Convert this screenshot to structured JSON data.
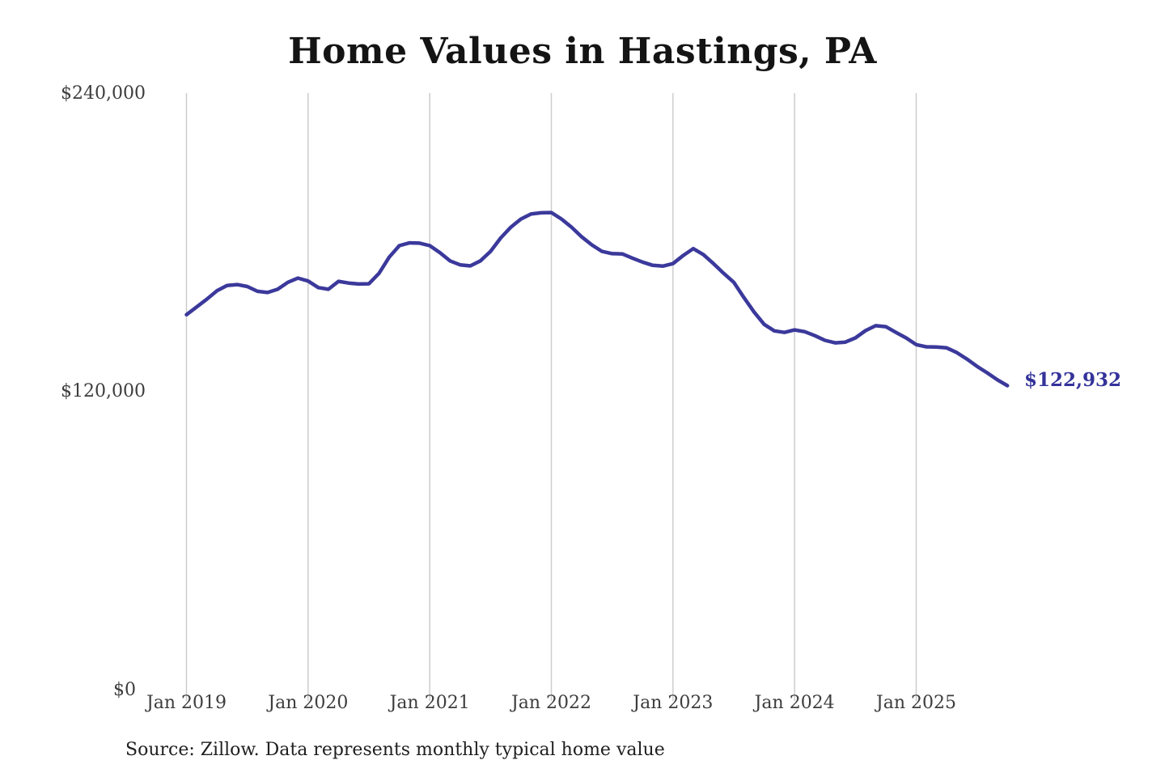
{
  "title": "Home Values in Hastings, PA",
  "source_note": "Source: Zillow. Data represents monthly typical home value",
  "colors": {
    "line": "#3b399b",
    "value_label": "#34339a",
    "grid": "#cccccc",
    "axis_text": "#3d3d3d",
    "title_text": "#141414"
  },
  "chart_data": {
    "type": "line",
    "title": "Home Values in Hastings, PA",
    "grid": "vertical-only",
    "legend": "none",
    "ylim": [
      0,
      240000
    ],
    "y_ticks": [
      {
        "label": "$0",
        "value": 0
      },
      {
        "label": "$120,000",
        "value": 120000
      },
      {
        "label": "$240,000",
        "value": 240000
      }
    ],
    "x_tick_labels": [
      "Jan 2019",
      "Jan 2020",
      "Jan 2021",
      "Jan 2022",
      "Jan 2023",
      "Jan 2024",
      "Jan 2025"
    ],
    "months": [
      "2019-01",
      "2019-02",
      "2019-03",
      "2019-04",
      "2019-05",
      "2019-06",
      "2019-07",
      "2019-08",
      "2019-09",
      "2019-10",
      "2019-11",
      "2019-12",
      "2020-01",
      "2020-02",
      "2020-03",
      "2020-04",
      "2020-05",
      "2020-06",
      "2020-07",
      "2020-08",
      "2020-09",
      "2020-10",
      "2020-11",
      "2020-12",
      "2021-01",
      "2021-02",
      "2021-03",
      "2021-04",
      "2021-05",
      "2021-06",
      "2021-07",
      "2021-08",
      "2021-09",
      "2021-10",
      "2021-11",
      "2021-12",
      "2022-01",
      "2022-02",
      "2022-03",
      "2022-04",
      "2022-05",
      "2022-06",
      "2022-07",
      "2022-08",
      "2022-09",
      "2022-10",
      "2022-11",
      "2022-12",
      "2023-01",
      "2023-02",
      "2023-03",
      "2023-04",
      "2023-05",
      "2023-06",
      "2023-07",
      "2023-08",
      "2023-09",
      "2023-10",
      "2023-11",
      "2023-12",
      "2024-01",
      "2024-02",
      "2024-03",
      "2024-04",
      "2024-05",
      "2024-06",
      "2024-07",
      "2024-08",
      "2024-09",
      "2024-10",
      "2024-11",
      "2024-12",
      "2025-01",
      "2025-02",
      "2025-03",
      "2025-04",
      "2025-05",
      "2025-06",
      "2025-07",
      "2025-08",
      "2025-09",
      "2025-10"
    ],
    "series": [
      {
        "name": "monthly-typical-home-value",
        "values": [
          151400,
          154500,
          157600,
          161000,
          163100,
          163500,
          162700,
          160800,
          160300,
          161600,
          164400,
          166100,
          164900,
          162300,
          161600,
          164800,
          164100,
          163700,
          163800,
          168000,
          174500,
          179100,
          180200,
          180100,
          179100,
          176300,
          173000,
          171400,
          171000,
          173000,
          176800,
          182200,
          186500,
          189800,
          191800,
          192300,
          192400,
          189800,
          186500,
          182600,
          179400,
          176800,
          175900,
          175800,
          174100,
          172500,
          171200,
          170900,
          171900,
          175100,
          177900,
          175500,
          171900,
          168000,
          164400,
          158300,
          152500,
          147500,
          144900,
          144300,
          145300,
          144600,
          143000,
          141100,
          140100,
          140400,
          142100,
          145000,
          147000,
          146600,
          144300,
          142100,
          139400,
          138500,
          138400,
          138100,
          136200,
          133600,
          130700,
          128100,
          125300,
          122932
        ]
      }
    ],
    "end_annotation": {
      "label": "$122,932",
      "value": 122932
    }
  }
}
